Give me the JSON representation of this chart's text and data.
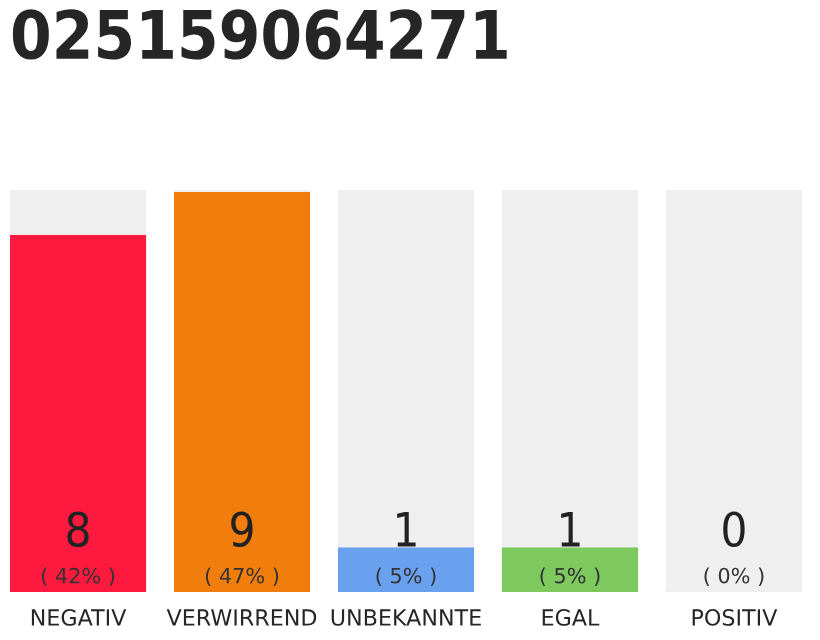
{
  "chart_data": {
    "type": "bar",
    "title": "025159064271",
    "categories": [
      "NEGATIV",
      "VERWIRREND",
      "UNBEKANNTE",
      "EGAL",
      "POSITIV"
    ],
    "stacked": true,
    "tick_labels": "x",
    "grid": false,
    "legend": false,
    "series": [
      {
        "colors": [
          "#fe1a3e",
          "#f17e0c",
          "#6aa1ee",
          "#7dc95e",
          "#2ea84a"
        ],
        "values": [
          8,
          9,
          1,
          1,
          0
        ],
        "value_labels": [
          "8\n( 42% )",
          "9\n( 47% )",
          "1\n( 5% )",
          "1\n( 5% )",
          "0\n( 0% )"
        ]
      },
      {
        "color": "#efefef",
        "values": [
          1,
          0,
          8,
          8,
          9
        ]
      }
    ]
  }
}
